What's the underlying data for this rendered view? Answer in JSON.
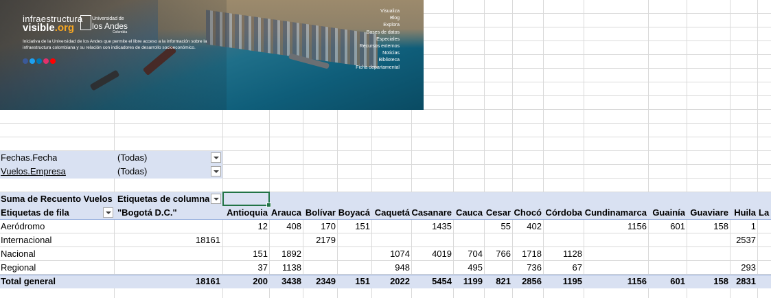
{
  "banner": {
    "brand_line1": "infraestructura",
    "brand_line2_a": "visible",
    "brand_line2_b": ".org",
    "university_small": "Universidad de",
    "university_big": "los Andes",
    "university_country": "Colombia",
    "intro": "Iniciativa de la Universidad de los Andes que permite el libre acceso a la información sobre la infraestructura colombiana y su relación con indicadores de desarrollo socioeconómico.",
    "social_icons": [
      "facebook-icon",
      "twitter-icon",
      "linkedin-icon",
      "instagram-icon",
      "youtube-icon"
    ],
    "social_colors": [
      "#3b5998",
      "#1da1f2",
      "#0077b5",
      "#e1306c",
      "#ff0000"
    ],
    "menu": [
      "Visualiza",
      "Blog",
      "Explora",
      "Bases de datos",
      "Especiales",
      "Recursos externos",
      "Noticias",
      "Biblioteca",
      "Ficha departamental"
    ]
  },
  "filters": [
    {
      "label": "Fechas.Fecha",
      "value": "(Todas)"
    },
    {
      "label": "Vuelos.Empresa",
      "value": "(Todas)"
    }
  ],
  "pivot": {
    "values_label": "Suma de Recuento Vuelos",
    "column_labels": "Etiquetas de columna",
    "row_labels": "Etiquetas de fila",
    "columns": [
      "\"Bogotá D.C.\"",
      "Antioquia",
      "Arauca",
      "Bolívar",
      "Boyacá",
      "Caquetá",
      "Casanare",
      "Cauca",
      "Cesar",
      "Chocó",
      "Córdoba",
      "Cundinamarca",
      "Guainía",
      "Guaviare",
      "Huila",
      "La G"
    ],
    "rows": [
      {
        "label": "Aeródromo",
        "values": [
          "",
          "12",
          "408",
          "170",
          "151",
          "",
          "1435",
          "",
          "55",
          "402",
          "",
          "1156",
          "601",
          "158",
          "1",
          ""
        ]
      },
      {
        "label": "Internacional",
        "values": [
          "18161",
          "",
          "",
          "2179",
          "",
          "",
          "",
          "",
          "",
          "",
          "",
          "",
          "",
          "",
          "2537",
          ""
        ]
      },
      {
        "label": "Nacional",
        "values": [
          "",
          "151",
          "1892",
          "",
          "",
          "1074",
          "4019",
          "704",
          "766",
          "1718",
          "1128",
          "",
          "",
          "",
          "",
          ""
        ]
      },
      {
        "label": "Regional",
        "values": [
          "",
          "37",
          "1138",
          "",
          "",
          "948",
          "",
          "495",
          "",
          "736",
          "67",
          "",
          "",
          "",
          "293",
          ""
        ]
      }
    ],
    "total": {
      "label": "Total general",
      "values": [
        "18161",
        "200",
        "3438",
        "2349",
        "151",
        "2022",
        "5454",
        "1199",
        "821",
        "2856",
        "1195",
        "1156",
        "601",
        "158",
        "2831",
        ""
      ]
    }
  },
  "colors": {
    "header_fill": "#d9e1f2",
    "selection": "#217346",
    "gridline": "#d9d9d9"
  }
}
